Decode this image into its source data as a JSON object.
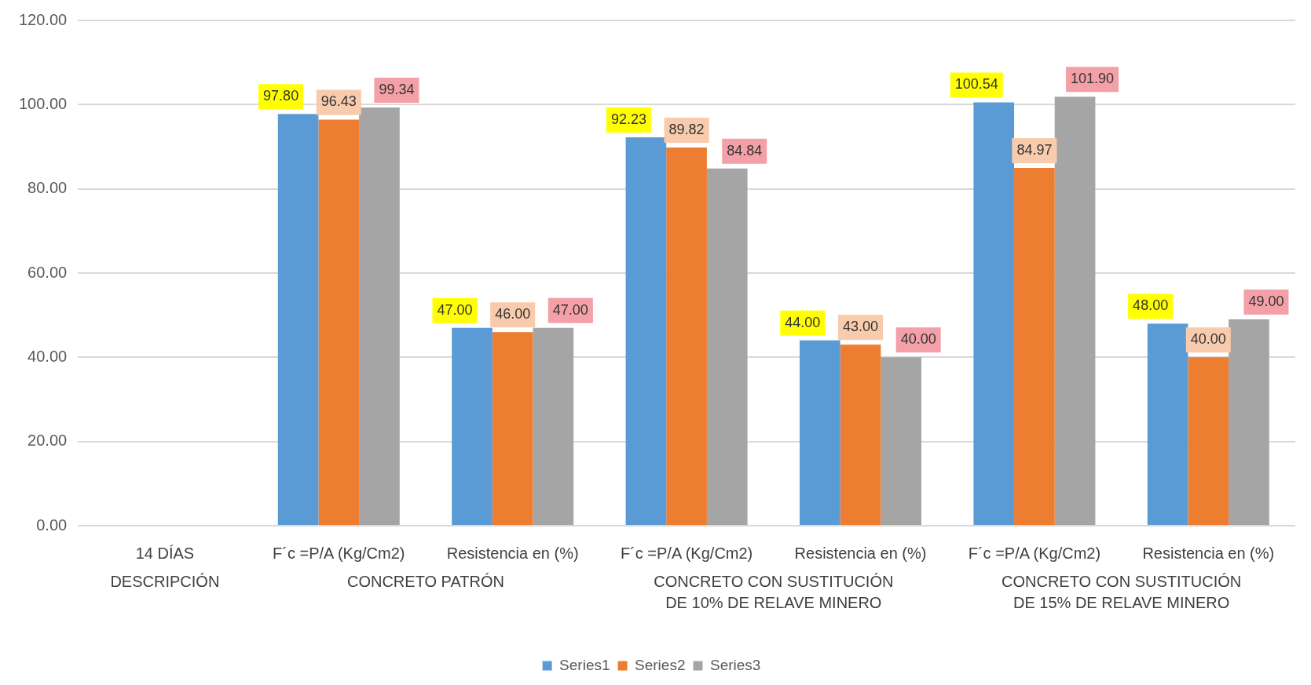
{
  "chart_data": {
    "type": "bar",
    "categories": [
      "14 DÍAS",
      "F´c =P/A (Kg/Cm2)",
      "Resistencia en (%)",
      "F´c =P/A (Kg/Cm2)",
      "Resistencia en (%)",
      "F´c =P/A (Kg/Cm2)",
      "Resistencia en (%)"
    ],
    "series": [
      {
        "name": "Series1",
        "color": "#5b9bd5",
        "values": [
          null,
          97.8,
          47,
          92.23,
          44,
          100.54,
          48
        ],
        "value_labels": [
          null,
          "97.80",
          "47.00",
          "92.23",
          "44.00",
          "100.54",
          "48.00"
        ]
      },
      {
        "name": "Series2",
        "color": "#ed7d31",
        "values": [
          null,
          96.43,
          46,
          89.82,
          43,
          84.97,
          40
        ],
        "value_labels": [
          null,
          "96.43",
          "46.00",
          "89.82",
          "43.00",
          "84.97",
          "40.00"
        ]
      },
      {
        "name": "Series3",
        "color": "#a5a5a5",
        "values": [
          null,
          99.34,
          47,
          84.84,
          40,
          101.9,
          49
        ],
        "value_labels": [
          null,
          "99.34",
          "47.00",
          "84.84",
          "40.00",
          "101.90",
          "49.00"
        ]
      }
    ],
    "ylim": [
      0,
      120
    ],
    "yticks": [
      {
        "value": 0,
        "label": "0.00"
      },
      {
        "value": 20,
        "label": "20.00"
      },
      {
        "value": 40,
        "label": "40.00"
      },
      {
        "value": 60,
        "label": "60.00"
      },
      {
        "value": 80,
        "label": "80.00"
      },
      {
        "value": 100,
        "label": "100.00"
      },
      {
        "value": 120,
        "label": "120.00"
      }
    ],
    "grid": "y",
    "legend": "bottom",
    "annotations": [
      "DESCRIPCIÓN",
      "CONCRETO PATRÓN",
      "CONCRETO CON SUSTITUCIÓN DE 10% DE RELAVE MINERO",
      "CONCRETO CON SUSTITUCIÓN DE 15% DE RELAVE MINERO"
    ]
  }
}
